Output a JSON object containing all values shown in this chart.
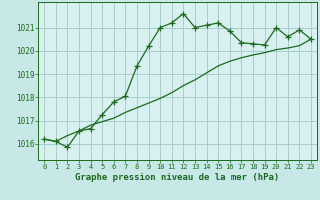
{
  "background_color": "#c8e8e8",
  "plot_bg_color": "#d8f0f0",
  "grid_color": "#a0c8c8",
  "line_color": "#1a6b1a",
  "xlabel": "Graphe pression niveau de la mer (hPa)",
  "xlabel_fontsize": 6.5,
  "yticks": [
    1016,
    1017,
    1018,
    1019,
    1020,
    1021
  ],
  "xticks": [
    0,
    1,
    2,
    3,
    4,
    5,
    6,
    7,
    8,
    9,
    10,
    11,
    12,
    13,
    14,
    15,
    16,
    17,
    18,
    19,
    20,
    21,
    22,
    23
  ],
  "xlim": [
    -0.5,
    23.5
  ],
  "ylim": [
    1015.3,
    1022.1
  ],
  "series1_x": [
    0,
    1,
    2,
    3,
    4,
    5,
    6,
    7,
    8,
    9,
    10,
    11,
    12,
    13,
    14,
    15,
    16,
    17,
    18,
    19,
    20,
    21,
    22,
    23
  ],
  "series1_y": [
    1016.2,
    1016.1,
    1015.85,
    1016.55,
    1016.65,
    1017.25,
    1017.8,
    1018.05,
    1019.35,
    1020.2,
    1021.0,
    1021.2,
    1021.6,
    1021.0,
    1021.1,
    1021.2,
    1020.85,
    1020.35,
    1020.3,
    1020.25,
    1021.0,
    1020.6,
    1020.9,
    1020.5
  ],
  "series2_x": [
    0,
    1,
    2,
    3,
    4,
    5,
    6,
    7,
    8,
    9,
    10,
    11,
    12,
    13,
    14,
    15,
    16,
    17,
    18,
    19,
    20,
    21,
    22,
    23
  ],
  "series2_y": [
    1016.2,
    1016.1,
    1016.35,
    1016.55,
    1016.8,
    1016.95,
    1017.1,
    1017.35,
    1017.55,
    1017.75,
    1017.95,
    1018.2,
    1018.5,
    1018.75,
    1019.05,
    1019.35,
    1019.55,
    1019.7,
    1019.82,
    1019.92,
    1020.05,
    1020.12,
    1020.22,
    1020.5
  ]
}
